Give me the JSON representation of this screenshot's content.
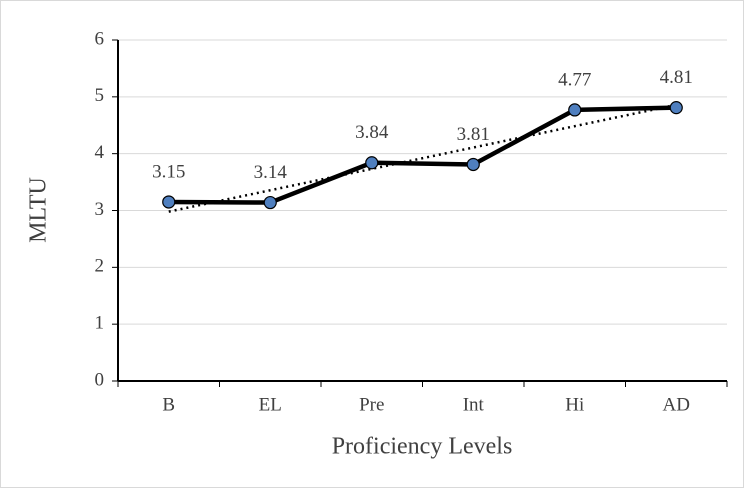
{
  "chart_data": {
    "type": "line",
    "x_label": "Proficiency Levels",
    "y_label": "MLTU",
    "categories": [
      "B",
      "EL",
      "Pre",
      "Int",
      "Hi",
      "AD"
    ],
    "values": [
      3.15,
      3.14,
      3.84,
      3.81,
      4.77,
      4.81
    ],
    "value_labels": [
      "3.15",
      "3.14",
      "3.84",
      "3.81",
      "4.77",
      "4.81"
    ],
    "color": "#000000",
    "marker_color": "#4f7fbf",
    "ylim": [
      0,
      6
    ],
    "yticks": [
      0,
      1,
      2,
      3,
      4,
      5,
      6
    ],
    "grid": true,
    "trendline": "linear"
  }
}
